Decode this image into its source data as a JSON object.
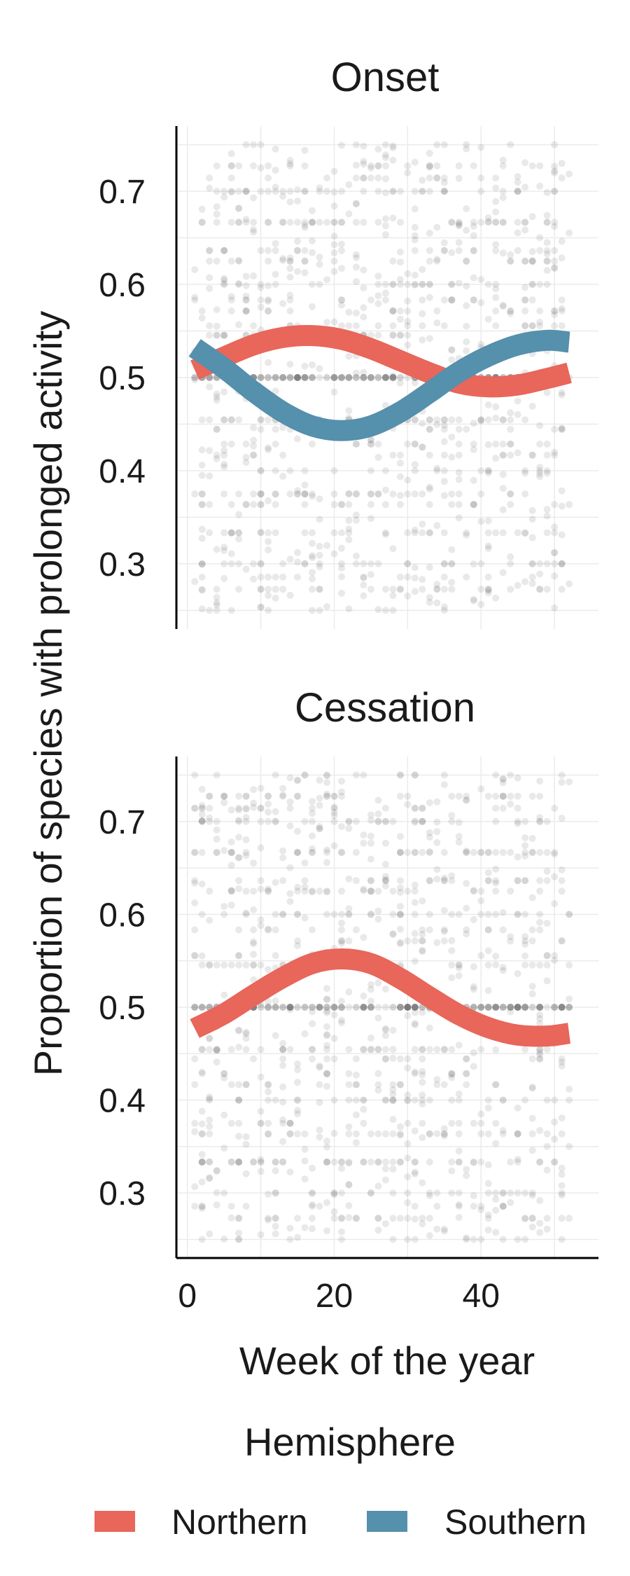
{
  "chart_data": {
    "type": "scatter",
    "xlabel": "Week of the year",
    "ylabel": "Proportion of species with prolonged activity",
    "xlim": [
      -1.5,
      56
    ],
    "xticks": [
      0,
      20,
      40
    ],
    "ylim": [
      0.23,
      0.77
    ],
    "yticks": [
      0.3,
      0.4,
      0.5,
      0.6,
      0.7
    ],
    "grid": true,
    "legend": {
      "title": "Hemisphere",
      "position": "bottom",
      "entries": [
        {
          "name": "Northern",
          "color": "#E8665A"
        },
        {
          "name": "Southern",
          "color": "#5590AD"
        }
      ]
    },
    "panels": [
      {
        "title": "Onset",
        "points": {
          "x_range": [
            1,
            52
          ],
          "y_range": [
            0.25,
            0.75
          ],
          "count": 1300
        },
        "series": [
          {
            "name": "Northern",
            "color": "#E8665A",
            "x": [
              1,
              5,
              9,
              13,
              17,
              21,
              25,
              29,
              33,
              37,
              41,
              45,
              49,
              52
            ],
            "y": [
              0.508,
              0.522,
              0.535,
              0.543,
              0.545,
              0.541,
              0.531,
              0.518,
              0.505,
              0.494,
              0.49,
              0.492,
              0.499,
              0.505
            ]
          },
          {
            "name": "Southern",
            "color": "#5590AD",
            "x": [
              1,
              5,
              9,
              13,
              17,
              21,
              25,
              29,
              33,
              37,
              41,
              45,
              49,
              52
            ],
            "y": [
              0.532,
              0.51,
              0.485,
              0.463,
              0.448,
              0.443,
              0.448,
              0.463,
              0.484,
              0.506,
              0.523,
              0.535,
              0.54,
              0.538
            ]
          }
        ]
      },
      {
        "title": "Cessation",
        "points": {
          "x_range": [
            1,
            52
          ],
          "y_range": [
            0.25,
            0.75
          ],
          "count": 1300
        },
        "series": [
          {
            "name": "Northern",
            "color": "#E8665A",
            "x": [
              1,
              5,
              9,
              13,
              17,
              21,
              25,
              29,
              33,
              37,
              41,
              45,
              49,
              52
            ],
            "y": [
              0.477,
              0.493,
              0.513,
              0.532,
              0.547,
              0.552,
              0.547,
              0.531,
              0.511,
              0.492,
              0.478,
              0.47,
              0.469,
              0.472
            ]
          }
        ]
      }
    ]
  }
}
